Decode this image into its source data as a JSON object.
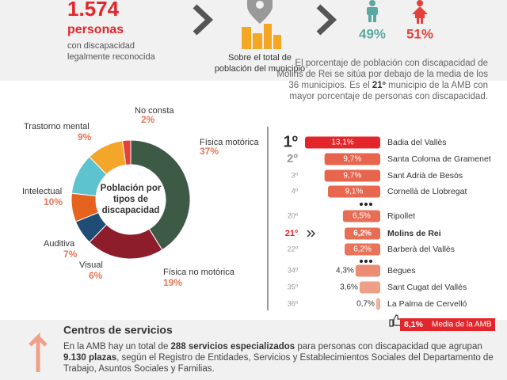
{
  "header": {
    "total": "1.574",
    "unit": "personas",
    "caption": [
      "con discapacidad",
      "legalmente reconocida"
    ],
    "municipio_caption": [
      "Sobre el total de",
      "población del municipio"
    ],
    "male": "49%",
    "female": "51%"
  },
  "summary": [
    "El porcentaje de población con discapacidad de Molins de Rei se sitúa por debajo de la media de los 36 municipios. Es el ",
    "21º",
    " municipio de la AMB con mayor porcentaje de personas con discapacidad."
  ],
  "chart_data": [
    {
      "type": "pie",
      "title": [
        "Población por",
        "tipos de",
        "discapacidad"
      ],
      "categories": [
        "Física motórica",
        "Física no motórica",
        "Visual",
        "Auditiva",
        "Intelectual",
        "Trastorno mental",
        "No consta"
      ],
      "values": [
        37,
        19,
        6,
        7,
        10,
        9,
        2
      ],
      "value_labels": [
        "37%",
        "19%",
        "6%",
        "7%",
        "10%",
        "9%",
        "2%"
      ],
      "colors": [
        "#3d5a47",
        "#8e1d2c",
        "#1f4d75",
        "#e5631f",
        "#5cc3cf",
        "#f4a62a",
        "#e5403a"
      ]
    },
    {
      "type": "bar",
      "ranks": [
        "1º",
        "2º",
        "3º",
        "4º",
        "20º",
        "21º",
        "22º",
        "34º",
        "35º",
        "36º"
      ],
      "categories": [
        "Badia del Vallès",
        "Santa Coloma de Gramenet",
        "Sant Adrià de Besòs",
        "Cornellà de Llobregat",
        "Ripollet",
        "Molins de Rei",
        "Barberà del Vallès",
        "Begues",
        "Sant Cugat del Vallès",
        "La Palma de Cervelló"
      ],
      "values": [
        13.1,
        9.7,
        9.7,
        9.1,
        6.5,
        6.2,
        6.2,
        4.3,
        3.6,
        0.7
      ],
      "value_labels": [
        "13,1%",
        "9,7%",
        "9,7%",
        "9,1%",
        "6,5%",
        "6,2%",
        "6,2%",
        "4,3%",
        "3,6%",
        "0,7%"
      ],
      "colors": [
        "#e3262b",
        "#e8654d",
        "#e8654d",
        "#e8674f",
        "#e86d55",
        "#e86d55",
        "#e9735b",
        "#eb8c74",
        "#ee9f88",
        "#f0b09c"
      ],
      "highlight": 5,
      "average": 8.1,
      "average_label": "8,1%",
      "average_name": "Media de la AMB",
      "average_color": "#e3262b"
    }
  ],
  "footer": {
    "title": "Centros de servicios",
    "text": [
      "En la AMB hay un total de ",
      "288 servicios especializados",
      " para personas con discapacidad que agrupan ",
      "9.130 plazas",
      ", según el Registro de Entidades, Servicios y Establecimientos Sociales del Departamento de Trabajo, Asuntos Sociales y Familias."
    ]
  }
}
